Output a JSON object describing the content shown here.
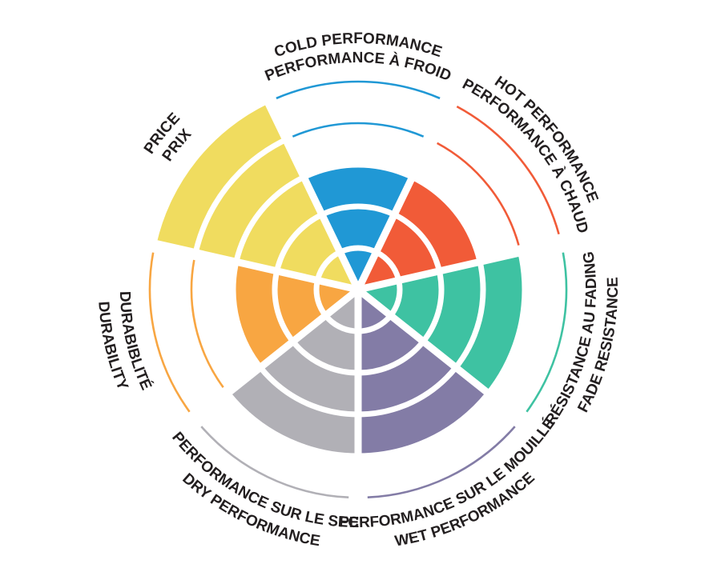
{
  "page": {
    "background": "#FFFFFF",
    "text_color": "#231F20"
  },
  "chart_data": {
    "type": "polar-rating-wheel",
    "scale_min": 0,
    "scale_max": 5,
    "rings": [
      1,
      2,
      3,
      4,
      5
    ],
    "grid": "white concentric rings and radial dividers over filled wedges; unfilled levels shown as thin colored arcs",
    "legend_position": "labels curved around wheel, bilingual",
    "sectors": [
      {
        "id": "cold",
        "line1": "COLD PERFORMANCE",
        "line2": "PERFORMANCE À FROID",
        "value": 3,
        "color": "#2098D5"
      },
      {
        "id": "hot",
        "line1": "HOT PERFORMANCE",
        "line2": "PERFORMANCE À CHAUD",
        "value": 3,
        "color": "#F15B38"
      },
      {
        "id": "fade",
        "line1": "RÉSISTANCE AU FADING",
        "line2": "FADE RESISTANCE",
        "value": 4,
        "color": "#3EC2A2"
      },
      {
        "id": "wet",
        "line1": "PERFORMANCE SUR LE MOUILLÉ",
        "line2": "WET PERFORMANCE",
        "value": 4,
        "color": "#837CA6"
      },
      {
        "id": "dry",
        "line1": "PERFORMANCE SUR LE SEC",
        "line2": "DRY PERFORMANCE",
        "value": 4,
        "color": "#B1B0B6"
      },
      {
        "id": "durability",
        "line1": "DURABIBLITÉ",
        "line2": "DURABILITY",
        "value": 3,
        "color": "#F8A642"
      },
      {
        "id": "price",
        "line1": "PRICE",
        "line2": "PRIX",
        "value": 5,
        "color": "#F0DC5F"
      }
    ]
  }
}
